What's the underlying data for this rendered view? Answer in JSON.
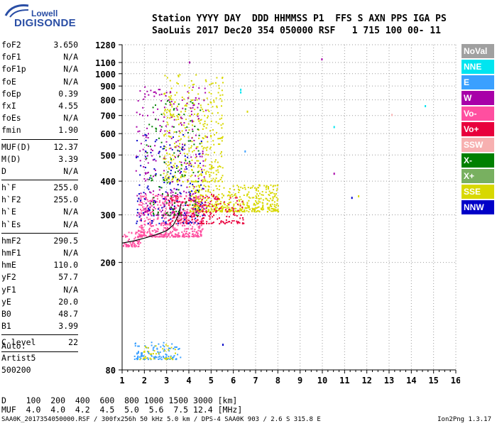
{
  "logo": {
    "top": "Lowell",
    "bottom": "DIGISONDE"
  },
  "header": {
    "line1": "Station YYYY DAY  DDD HHMMSS P1  FFS S AXN PPS IGA PS",
    "line2": "SaoLuis 2017 Dec20 354 050000 RSF   1 715 100 00- 11"
  },
  "params_group1": [
    {
      "label": "foF2",
      "value": "3.650"
    },
    {
      "label": "foF1",
      "value": "N/A"
    },
    {
      "label": "foF1p",
      "value": "N/A"
    },
    {
      "label": "foE",
      "value": "N/A"
    },
    {
      "label": "foEp",
      "value": "0.39"
    },
    {
      "label": "fxI",
      "value": "4.55"
    },
    {
      "label": "foEs",
      "value": "N/A"
    },
    {
      "label": "fmin",
      "value": "1.90"
    }
  ],
  "params_group2": [
    {
      "label": "MUF(D)",
      "value": "12.37"
    },
    {
      "label": "M(D)",
      "value": "3.39"
    },
    {
      "label": "D",
      "value": "N/A"
    }
  ],
  "params_group3": [
    {
      "label": "h`F",
      "value": "255.0"
    },
    {
      "label": "h`F2",
      "value": "255.0"
    },
    {
      "label": "h`E",
      "value": "N/A"
    },
    {
      "label": "h`Es",
      "value": "N/A"
    }
  ],
  "params_group4": [
    {
      "label": "hmF2",
      "value": "290.5"
    },
    {
      "label": "hmF1",
      "value": "N/A"
    },
    {
      "label": "hmE",
      "value": "110.0"
    },
    {
      "label": "yF2",
      "value": "57.7"
    },
    {
      "label": "yF1",
      "value": "N/A"
    },
    {
      "label": "yE",
      "value": "20.0"
    },
    {
      "label": "B0",
      "value": "48.7"
    },
    {
      "label": "B1",
      "value": "3.99"
    }
  ],
  "params_group5": [
    {
      "label": "C-level",
      "value": "22"
    }
  ],
  "auto": {
    "line1": "Auto:",
    "line2": "Artist5",
    "line3": "500200"
  },
  "table": {
    "row1": "D    100  200  400  600  800 1000 1500 3000 [km]",
    "row2": "MUF  4.0  4.0  4.2  4.5  5.0  5.6  7.5 12.4 [MHz]"
  },
  "footer": {
    "left": "SAA0K_2017354050000.RSF / 300fx256h 50 kHz 5.0 km / DPS-4 SAA0K 903 / 2.6 S 315.8 E",
    "right": "Ion2Png 1.3.17"
  },
  "legend": [
    {
      "label": "NoVal",
      "color": "#a0a0a0"
    },
    {
      "label": "NNE",
      "color": "#00e5f0"
    },
    {
      "label": "E",
      "color": "#3aa0ff"
    },
    {
      "label": "W",
      "color": "#a800a8"
    },
    {
      "label": "Vo-",
      "color": "#ff4fa0"
    },
    {
      "label": "Vo+",
      "color": "#e8003c"
    },
    {
      "label": "SSW",
      "color": "#f7b0b0"
    },
    {
      "label": "X-",
      "color": "#008000"
    },
    {
      "label": "X+",
      "color": "#78b060"
    },
    {
      "label": "SSE",
      "color": "#d8d800"
    },
    {
      "label": "NNW",
      "color": "#0000c8"
    }
  ],
  "chart_data": {
    "type": "scatter",
    "xlabel": "",
    "ylabel": "",
    "xlim": [
      1,
      16
    ],
    "ylim": [
      80,
      1280
    ],
    "x_ticks": [
      "1",
      "2",
      "3",
      "4",
      "5",
      "6",
      "7",
      "8",
      "9",
      "10",
      "11",
      "12",
      "13",
      "14",
      "15",
      "16"
    ],
    "y_ticks": [
      {
        "value": 80,
        "label": "80"
      },
      {
        "value": 200,
        "label": "200"
      },
      {
        "value": 300,
        "label": "300"
      },
      {
        "value": 400,
        "label": "400"
      },
      {
        "value": 500,
        "label": "500"
      },
      {
        "value": 600,
        "label": "600"
      },
      {
        "value": 700,
        "label": "700"
      },
      {
        "value": 800,
        "label": "800"
      },
      {
        "value": 900,
        "label": "900"
      },
      {
        "value": 1000,
        "label": "1000"
      },
      {
        "value": 1100,
        "label": "1100"
      },
      {
        "value": 1280,
        "label": "1280"
      }
    ],
    "grid": true,
    "y_scale": "log",
    "legend_position": "right",
    "clusters": [
      {
        "name": "F2 trace",
        "color": "#ff4fa0",
        "x_range": [
          1.7,
          4.6
        ],
        "y_range": [
          250,
          360
        ],
        "count": 520
      },
      {
        "name": "F2 extended",
        "color": "#d8d800",
        "x_range": [
          4.0,
          8.0
        ],
        "y_range": [
          310,
          390
        ],
        "count": 450
      },
      {
        "name": "F2 extended O",
        "color": "#e8003c",
        "x_range": [
          3.0,
          6.5
        ],
        "y_range": [
          280,
          360
        ],
        "count": 220
      },
      {
        "name": "spread high",
        "color": "#d8d800",
        "x_range": [
          2.8,
          5.5
        ],
        "y_range": [
          400,
          1000
        ],
        "count": 380
      },
      {
        "name": "spread W",
        "color": "#a800a8",
        "x_range": [
          1.6,
          4.8
        ],
        "y_range": [
          300,
          900
        ],
        "count": 260
      },
      {
        "name": "spread NNW",
        "color": "#0000c8",
        "x_range": [
          1.6,
          4.6
        ],
        "y_range": [
          280,
          600
        ],
        "count": 140
      },
      {
        "name": "spread green",
        "color": "#008000",
        "x_range": [
          2.0,
          4.5
        ],
        "y_range": [
          300,
          800
        ],
        "count": 120
      },
      {
        "name": "E layer",
        "color": "#3aa0ff",
        "x_range": [
          1.5,
          3.6
        ],
        "y_range": [
          88,
          102
        ],
        "count": 110
      },
      {
        "name": "E layer yellow",
        "color": "#d8d800",
        "x_range": [
          1.7,
          3.4
        ],
        "y_range": [
          88,
          100
        ],
        "count": 40
      },
      {
        "name": "low traces",
        "color": "#ff4fa0",
        "x_range": [
          1.0,
          1.8
        ],
        "y_range": [
          230,
          260
        ],
        "count": 60
      }
    ],
    "points": [
      {
        "x": 9.95,
        "y": 1140,
        "color": "#a800a8"
      },
      {
        "x": 6.3,
        "y": 860,
        "color": "#00e5f0"
      },
      {
        "x": 6.3,
        "y": 880,
        "color": "#00e5f0"
      },
      {
        "x": 6.6,
        "y": 730,
        "color": "#d8d800"
      },
      {
        "x": 6.5,
        "y": 520,
        "color": "#3aa0ff"
      },
      {
        "x": 10.5,
        "y": 640,
        "color": "#00e5f0"
      },
      {
        "x": 10.5,
        "y": 430,
        "color": "#a800a8"
      },
      {
        "x": 11.3,
        "y": 350,
        "color": "#0000c8"
      },
      {
        "x": 11.6,
        "y": 355,
        "color": "#d8d800"
      },
      {
        "x": 13.1,
        "y": 710,
        "color": "#f7b0b0"
      },
      {
        "x": 14.6,
        "y": 765,
        "color": "#00e5f0"
      },
      {
        "x": 5.5,
        "y": 100,
        "color": "#0000c8"
      },
      {
        "x": 4.0,
        "y": 1110,
        "color": "#a800a8"
      }
    ],
    "profile_curve": {
      "x": [
        1.0,
        1.5,
        2.0,
        2.5,
        3.0,
        3.3,
        3.5,
        3.65
      ],
      "y": [
        236,
        240,
        246,
        253,
        262,
        275,
        295,
        330
      ]
    }
  }
}
